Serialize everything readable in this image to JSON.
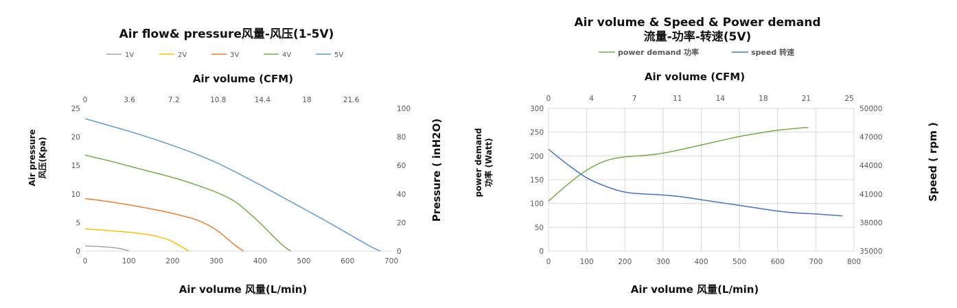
{
  "chart_data": [
    {
      "type": "line",
      "title": "Air flow& pressure风量-风压(1-5V)",
      "xlabel": "Air volume 风量(L/min)",
      "x2label": "Air volume (CFM)",
      "ylabel_line1": "Air pressure",
      "ylabel_line2": "风压(Kpa)",
      "y2label": "Pressure ( inH2O)",
      "xlim": [
        0,
        700
      ],
      "x_ticks": [
        "0",
        "100",
        "200",
        "300",
        "400",
        "500",
        "600",
        "700"
      ],
      "x2_ticks": [
        "0",
        "3.6",
        "7.2",
        "10.8",
        "14.4",
        "18",
        "21.6"
      ],
      "ylim": [
        0,
        25
      ],
      "y_ticks": [
        "0",
        "5",
        "10",
        "15",
        "20",
        "25"
      ],
      "y2lim": [
        0,
        100
      ],
      "y2_ticks": [
        "0",
        "20",
        "40",
        "60",
        "80",
        "100"
      ],
      "grid": false,
      "legend_position": "top",
      "series": [
        {
          "name": "1V",
          "color": "#a5a5a5",
          "x": [
            0,
            40,
            70,
            90,
            100
          ],
          "y": [
            0.9,
            0.75,
            0.55,
            0.25,
            0
          ]
        },
        {
          "name": "2V",
          "color": "#ffc000",
          "x": [
            0,
            50,
            100,
            150,
            190,
            215,
            237
          ],
          "y": [
            3.9,
            3.6,
            3.3,
            2.8,
            2.0,
            1.0,
            0
          ]
        },
        {
          "name": "3V",
          "color": "#ed7d31",
          "x": [
            0,
            50,
            100,
            150,
            200,
            250,
            280,
            300,
            320,
            340,
            362
          ],
          "y": [
            9.2,
            8.7,
            8.1,
            7.4,
            6.6,
            5.6,
            4.6,
            3.7,
            2.5,
            1.2,
            0
          ]
        },
        {
          "name": "4V",
          "color": "#70ad47",
          "x": [
            0,
            50,
            100,
            150,
            200,
            250,
            300,
            340,
            370,
            400,
            430,
            455,
            470
          ],
          "y": [
            16.8,
            15.9,
            14.9,
            13.9,
            12.9,
            11.7,
            10.3,
            8.8,
            7.0,
            4.9,
            2.6,
            0.8,
            0
          ]
        },
        {
          "name": "5V",
          "color": "#5b9bd5",
          "x": [
            0,
            50,
            100,
            150,
            200,
            250,
            300,
            350,
            400,
            450,
            500,
            550,
            600,
            650,
            675
          ],
          "y": [
            23.2,
            22.1,
            21.0,
            19.8,
            18.5,
            17.1,
            15.5,
            13.6,
            11.6,
            9.5,
            7.4,
            5.3,
            3.1,
            0.9,
            0
          ]
        }
      ]
    },
    {
      "type": "line",
      "title_line1": "Air volume & Speed & Power demand",
      "title_line2": "流量-功率-转速(5V)",
      "xlabel": "Air volume 风量(L/min)",
      "x2label": "Air volume (CFM)",
      "ylabel_line1": "power demand",
      "ylabel_line2": "功率 (Watt)",
      "y2label": "Speed ( rpm )",
      "xlim": [
        0,
        800
      ],
      "x_ticks": [
        "0",
        "100",
        "200",
        "300",
        "400",
        "500",
        "600",
        "700",
        "800"
      ],
      "x2_ticks": [
        "0",
        "4",
        "7",
        "11",
        "14",
        "18",
        "21",
        "25"
      ],
      "ylim": [
        0,
        300
      ],
      "y_ticks": [
        "0",
        "50",
        "100",
        "150",
        "200",
        "250",
        "300"
      ],
      "y2lim": [
        35000,
        50000
      ],
      "y2_ticks": [
        "35000",
        "38000",
        "41000",
        "44000",
        "47000",
        "50000"
      ],
      "grid": true,
      "legend_position": "top",
      "series": [
        {
          "name": "power demand 功率",
          "color": "#70ad47",
          "axis": "left",
          "x": [
            0,
            50,
            100,
            150,
            200,
            250,
            300,
            350,
            400,
            450,
            500,
            550,
            600,
            650,
            680
          ],
          "y": [
            105,
            140,
            170,
            190,
            198,
            201,
            206,
            214,
            223,
            232,
            241,
            248,
            254,
            258,
            260
          ]
        },
        {
          "name": "speed 转速",
          "color": "#4472c4",
          "axis": "right",
          "x": [
            0,
            50,
            100,
            150,
            200,
            250,
            300,
            350,
            400,
            450,
            500,
            550,
            600,
            650,
            700,
            770
          ],
          "y": [
            45700,
            44100,
            42700,
            41800,
            41200,
            41000,
            40900,
            40700,
            40400,
            40100,
            39800,
            39500,
            39200,
            39000,
            38900,
            38700
          ]
        }
      ]
    }
  ]
}
